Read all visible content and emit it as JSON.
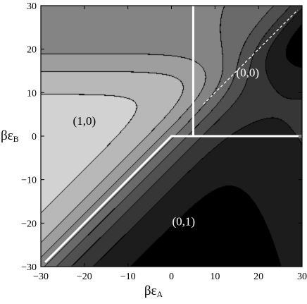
{
  "chart_data": {
    "type": "contour",
    "xlabel": "βε",
    "xlabel_sub": "A",
    "ylabel": "βε",
    "ylabel_sub": "B",
    "xlim": [
      -30,
      30
    ],
    "ylim": [
      -30,
      30
    ],
    "xticks": [
      -30,
      -20,
      -10,
      0,
      10,
      20,
      30
    ],
    "yticks": [
      -30,
      -20,
      -10,
      0,
      10,
      20,
      30
    ],
    "contour_fills": [
      "#000000",
      "#1c1c1c",
      "#363636",
      "#505050",
      "#6a6a6a",
      "#848484",
      "#9e9e9e",
      "#b8b8b8",
      "#d2d2d2",
      "#ececec",
      "#ffffff"
    ],
    "region_labels": [
      {
        "text": "(1,0)",
        "x": -20,
        "y": 3.6,
        "color": "#000000"
      },
      {
        "text": "(0,0)",
        "x": 17.5,
        "y": 14.7,
        "color": "#ffffff"
      },
      {
        "text": "(0,1)",
        "x": 2.8,
        "y": -19.5,
        "color": "#ffffff"
      }
    ],
    "phase_boundaries": [
      {
        "style": "solid",
        "color": "#ffffff",
        "points": [
          [
            -29,
            -29
          ],
          [
            0,
            0
          ],
          [
            30,
            0
          ]
        ]
      },
      {
        "style": "solid",
        "color": "#ffffff",
        "points": [
          [
            5,
            30
          ],
          [
            5,
            0
          ]
        ]
      },
      {
        "style": "dashed",
        "color": "#ffffff",
        "points": [
          [
            7.3,
            7.3
          ],
          [
            29,
            29
          ]
        ]
      }
    ]
  }
}
